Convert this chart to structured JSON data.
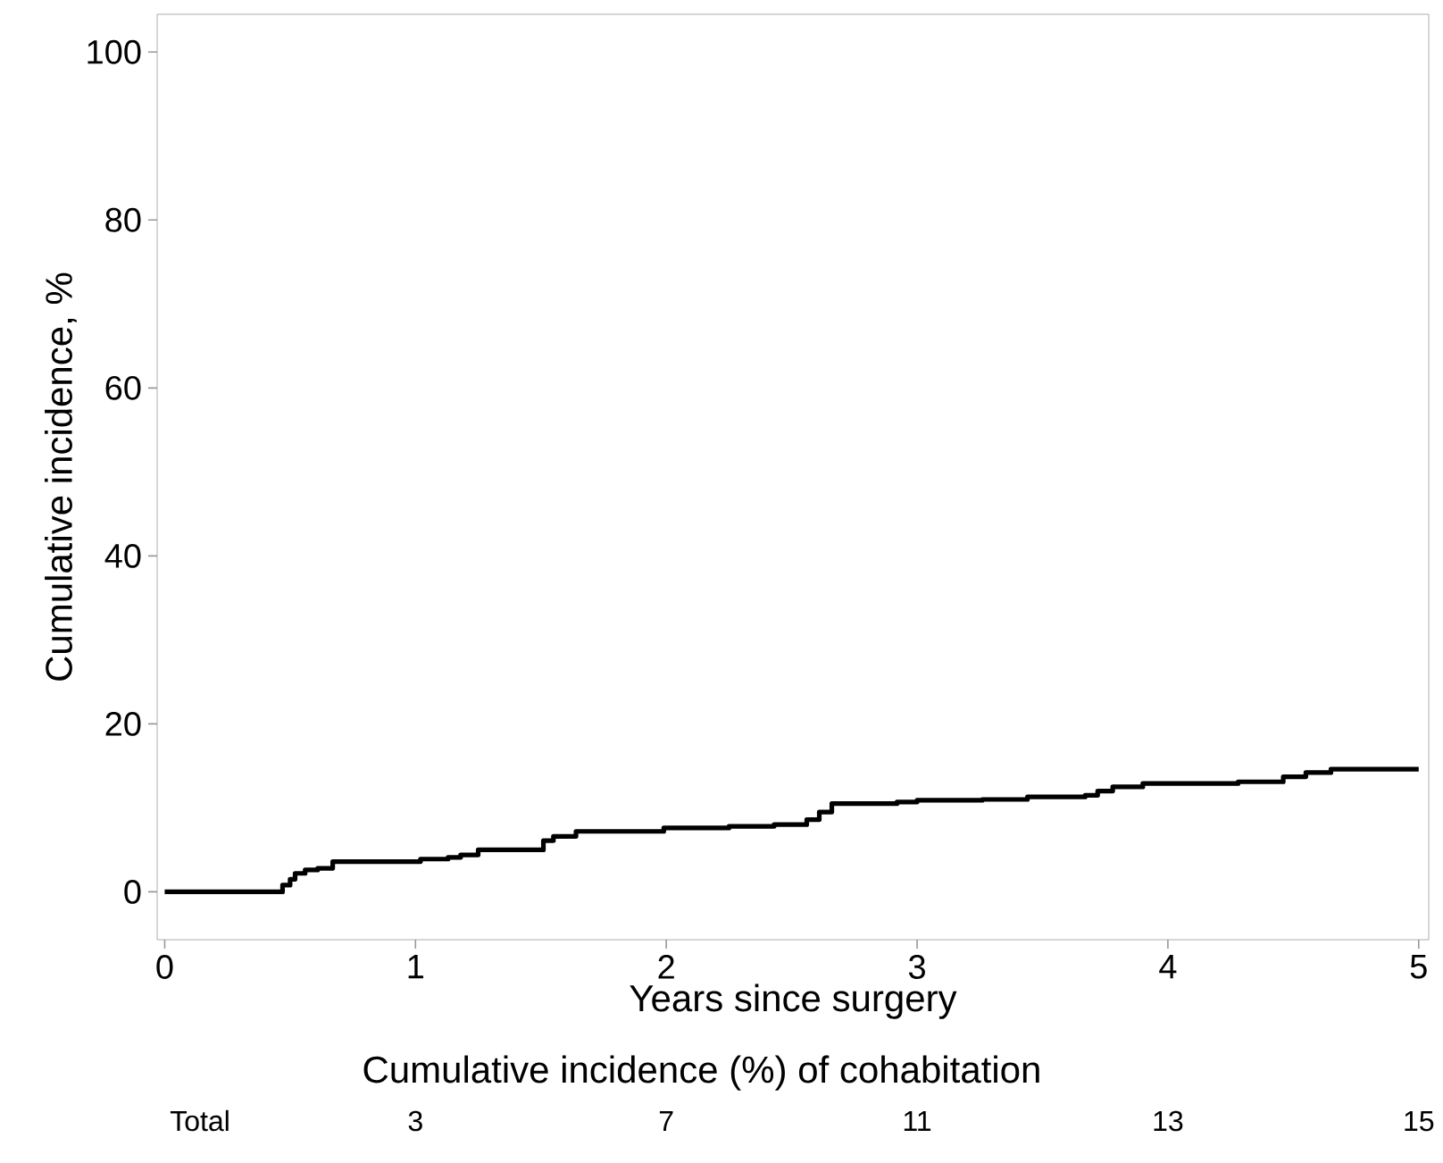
{
  "chart_data": {
    "type": "step",
    "xlabel": "Years since surgery",
    "ylabel": "Cumulative incidence, %",
    "xlim": [
      -0.03,
      5.04
    ],
    "ylim": [
      -5.7,
      104.5
    ],
    "xticks": [
      0,
      1,
      2,
      3,
      4,
      5
    ],
    "yticks": [
      0,
      20,
      40,
      60,
      80,
      100
    ],
    "series": [
      {
        "color": "#000000",
        "x": [
          0,
          0.46,
          0.47,
          0.5,
          0.52,
          0.56,
          0.61,
          0.67,
          1.0,
          1.02,
          1.13,
          1.18,
          1.25,
          1.44,
          1.51,
          1.55,
          1.64,
          1.95,
          1.99,
          2.25,
          2.43,
          2.55,
          2.56,
          2.61,
          2.66,
          2.92,
          3.0,
          3.26,
          3.44,
          3.67,
          3.72,
          3.78,
          3.9,
          4.28,
          4.46,
          4.55,
          4.65,
          5.0
        ],
        "values": [
          0,
          0,
          0.8,
          1.5,
          2.2,
          2.6,
          2.8,
          3.6,
          3.6,
          3.9,
          4.1,
          4.4,
          5.0,
          5.0,
          6.1,
          6.6,
          7.2,
          7.2,
          7.6,
          7.8,
          8.0,
          8.0,
          8.6,
          9.5,
          10.5,
          10.7,
          10.9,
          11.0,
          11.3,
          11.5,
          12.0,
          12.5,
          12.9,
          13.1,
          13.7,
          14.2,
          14.6,
          14.6
        ]
      }
    ],
    "line_style": "solid",
    "grid": false,
    "annotations": [
      "Cumulative incidence (%) of cohabitation",
      "Total",
      "3",
      "7",
      "11",
      "13",
      "15"
    ]
  }
}
